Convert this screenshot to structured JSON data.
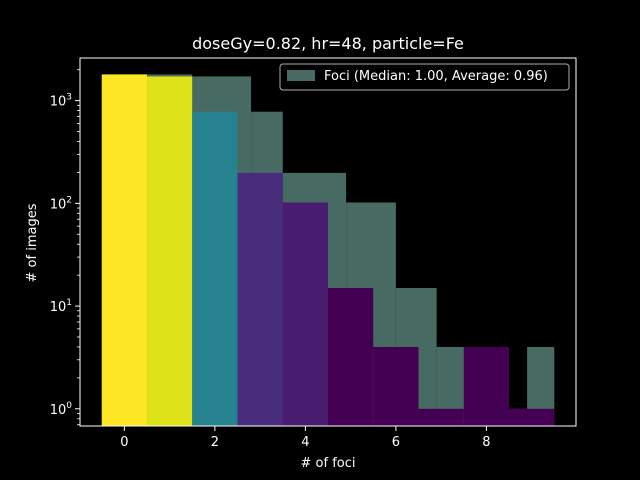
{
  "chart_data": {
    "type": "bar",
    "title": "doseGy=0.82, hr=48, particle=Fe",
    "xlabel": "# of foci",
    "ylabel": "# of images",
    "yscale": "log",
    "xlim": [
      -0.98,
      9.98
    ],
    "ylim": [
      0.68,
      2600
    ],
    "xticks": [
      0,
      2,
      4,
      6,
      8
    ],
    "xtick_labels": [
      "0",
      "2",
      "4",
      "6",
      "8"
    ],
    "yticks": [
      1,
      10,
      100,
      1000
    ],
    "ytick_labels": [
      "10^0",
      "10^1",
      "10^2",
      "10^3"
    ],
    "grid": false,
    "legend": {
      "position": "top-right",
      "entries": [
        "Foci (Median: 1.00, Average: 0.96)"
      ]
    },
    "series": [
      {
        "name": "Foci (Median: 1.00, Average: 0.96)",
        "kind": "histogram",
        "color": "#476b63",
        "bins": [
          {
            "x0": 0.0,
            "x1": 1.5,
            "value": 1800
          },
          {
            "x0": 1.5,
            "x1": 2.8,
            "value": 1720
          },
          {
            "x0": 2.8,
            "x1": 3.5,
            "value": 780
          },
          {
            "x0": 3.5,
            "x1": 4.9,
            "value": 198
          },
          {
            "x0": 4.9,
            "x1": 6.0,
            "value": 102
          },
          {
            "x0": 6.0,
            "x1": 6.9,
            "value": 15
          },
          {
            "x0": 6.9,
            "x1": 7.8,
            "value": 4
          },
          {
            "x0": 7.8,
            "x1": 8.9,
            "value": 1
          },
          {
            "x0": 8.9,
            "x1": 9.5,
            "value": 4
          },
          {
            "x0": 9.5,
            "x1": 9.5,
            "value": 1
          }
        ]
      },
      {
        "name": "",
        "kind": "bar",
        "width": 1.0,
        "x": [
          0,
          1,
          2,
          3,
          4,
          5,
          6,
          7,
          8,
          9
        ],
        "values": [
          1800,
          1720,
          780,
          198,
          102,
          15,
          4,
          1,
          4,
          1
        ],
        "colors": [
          "#fde725",
          "#dde318",
          "#26828e",
          "#472d7b",
          "#481c6e",
          "#440154",
          "#440154",
          "#440154",
          "#440154",
          "#440154"
        ]
      }
    ]
  }
}
